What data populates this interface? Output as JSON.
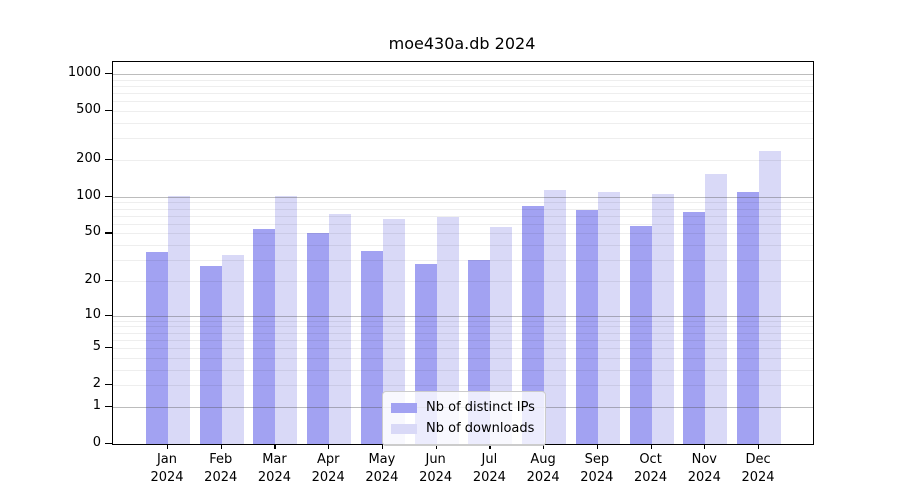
{
  "title": "moe430a.db 2024",
  "chart_data": {
    "type": "bar",
    "title": "moe430a.db 2024",
    "subtitle": "",
    "xlabel": "",
    "ylabel": "",
    "scale": "log1p",
    "grid": true,
    "legend_position": "lower center",
    "y_ticks": [
      0,
      1,
      2,
      5,
      10,
      20,
      50,
      100,
      200,
      500,
      1000
    ],
    "ylim": [
      0,
      1200
    ],
    "categories": [
      {
        "month": "Jan",
        "year": "2024"
      },
      {
        "month": "Feb",
        "year": "2024"
      },
      {
        "month": "Mar",
        "year": "2024"
      },
      {
        "month": "Apr",
        "year": "2024"
      },
      {
        "month": "May",
        "year": "2024"
      },
      {
        "month": "Jun",
        "year": "2024"
      },
      {
        "month": "Jul",
        "year": "2024"
      },
      {
        "month": "Aug",
        "year": "2024"
      },
      {
        "month": "Sep",
        "year": "2024"
      },
      {
        "month": "Oct",
        "year": "2024"
      },
      {
        "month": "Nov",
        "year": "2024"
      },
      {
        "month": "Dec",
        "year": "2024"
      }
    ],
    "series": [
      {
        "name": "Nb of distinct IPs",
        "color": "#a2a2f2",
        "values": [
          35,
          27,
          54,
          50,
          36,
          28,
          30,
          84,
          78,
          58,
          75,
          110
        ]
      },
      {
        "name": "Nb of downloads",
        "color": "#d9d9f7",
        "values": [
          102,
          33,
          101,
          73,
          66,
          68,
          57,
          114,
          110,
          105,
          155,
          235
        ]
      }
    ]
  },
  "colors": {
    "distinct_ips_bar": "#a2a2f2",
    "downloads_bar": "#d9d9f7",
    "major_gridline": "#b5b5b5",
    "minor_gridline": "#ededed",
    "axis": "#000000",
    "background": "#ffffff"
  }
}
